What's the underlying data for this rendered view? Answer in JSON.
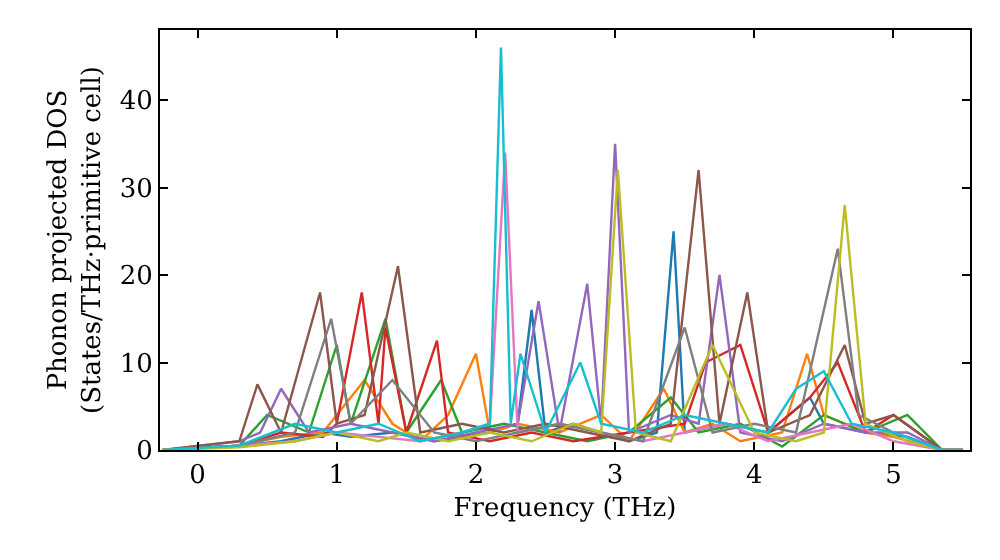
{
  "chart_data": {
    "type": "line",
    "xlabel": "Frequency (THz)",
    "ylabel": "Phonon projected DOS\n(States/THz·primitive cell)",
    "xlim": [
      -0.27,
      5.55
    ],
    "ylim": [
      0,
      48
    ],
    "xticks": [
      0,
      1,
      2,
      3,
      4,
      5
    ],
    "yticks": [
      0,
      10,
      20,
      30,
      40
    ],
    "series": [
      {
        "color": "#1f77b4",
        "x": [
          -0.25,
          0.3,
          0.6,
          0.9,
          1.1,
          1.4,
          1.7,
          1.9,
          2.1,
          2.3,
          2.4,
          2.5,
          2.7,
          2.9,
          3.1,
          3.3,
          3.42,
          3.5,
          3.8,
          4.1,
          4.4,
          4.5,
          4.8,
          5.1,
          5.35,
          5.5
        ],
        "values": [
          0,
          0.5,
          1,
          2,
          1.5,
          2,
          1,
          1.5,
          2,
          3,
          16,
          2,
          3,
          2,
          1,
          2,
          25,
          2,
          3,
          2,
          6,
          3,
          2,
          1.5,
          0,
          0
        ]
      },
      {
        "color": "#ff7f0e",
        "x": [
          -0.25,
          0.3,
          0.6,
          0.9,
          1.2,
          1.4,
          1.6,
          1.8,
          2.0,
          2.1,
          2.3,
          2.6,
          2.9,
          3.1,
          3.35,
          3.5,
          3.7,
          3.9,
          4.2,
          4.38,
          4.5,
          4.8,
          5.0,
          5.35,
          5.5
        ],
        "values": [
          0,
          0.5,
          1.5,
          2,
          8,
          3,
          1,
          4,
          11,
          2,
          3,
          2,
          4,
          1,
          7,
          2,
          3,
          1,
          2,
          11,
          4,
          2,
          1.5,
          0,
          0
        ]
      },
      {
        "color": "#2ca02c",
        "x": [
          -0.25,
          0.3,
          0.5,
          0.8,
          1.0,
          1.1,
          1.35,
          1.5,
          1.75,
          1.9,
          2.2,
          2.5,
          2.8,
          3.1,
          3.4,
          3.6,
          3.9,
          4.2,
          4.5,
          4.8,
          5.1,
          5.35,
          5.5
        ],
        "values": [
          0,
          0.5,
          4,
          2,
          12,
          3,
          15,
          2,
          8,
          2,
          3,
          2,
          1,
          2,
          6,
          2,
          3,
          0.4,
          4,
          2,
          4,
          0,
          0
        ]
      },
      {
        "color": "#d62728",
        "x": [
          -0.25,
          0.3,
          0.6,
          0.9,
          1.0,
          1.18,
          1.3,
          1.35,
          1.5,
          1.72,
          1.8,
          2.1,
          2.4,
          2.7,
          3.1,
          3.5,
          3.65,
          3.9,
          4.1,
          4.4,
          4.6,
          4.8,
          5.0,
          5.35,
          5.5
        ],
        "values": [
          0,
          0.5,
          2,
          1.5,
          3,
          18,
          3,
          14,
          2,
          12.5,
          2,
          1,
          2,
          1,
          2,
          3,
          10,
          12,
          2,
          6,
          10,
          2,
          4,
          0,
          0
        ]
      },
      {
        "color": "#9467bd",
        "x": [
          -0.25,
          0.3,
          0.45,
          0.6,
          0.8,
          1.1,
          1.4,
          1.7,
          2.0,
          2.3,
          2.45,
          2.6,
          2.8,
          2.9,
          3.0,
          3.1,
          3.4,
          3.6,
          3.75,
          3.9,
          4.2,
          4.5,
          4.8,
          5.1,
          5.35,
          5.5
        ],
        "values": [
          0,
          1,
          2,
          7,
          2,
          3,
          2,
          1,
          2,
          3,
          17,
          2,
          19,
          3,
          35,
          2,
          4,
          3,
          20,
          2,
          1,
          3,
          2,
          2,
          0,
          0
        ]
      },
      {
        "color": "#8c564b",
        "x": [
          -0.25,
          0.3,
          0.43,
          0.6,
          0.88,
          1.0,
          1.2,
          1.44,
          1.6,
          1.9,
          2.2,
          2.5,
          2.8,
          3.1,
          3.4,
          3.6,
          3.75,
          3.95,
          4.1,
          4.4,
          4.65,
          4.8,
          5.0,
          5.35,
          5.5
        ],
        "values": [
          0,
          1,
          7.5,
          2,
          18,
          3,
          4,
          21,
          2,
          3,
          2,
          3,
          2,
          1,
          3,
          32,
          3,
          18,
          2,
          4,
          12,
          3,
          4,
          0,
          0
        ]
      },
      {
        "color": "#e377c2",
        "x": [
          -0.25,
          0.3,
          0.7,
          1.0,
          1.3,
          1.6,
          1.9,
          2.1,
          2.21,
          2.3,
          2.6,
          2.9,
          3.2,
          3.5,
          3.8,
          4.1,
          4.4,
          4.7,
          5.0,
          5.35,
          5.5
        ],
        "values": [
          0,
          0.5,
          1,
          2,
          1.5,
          1,
          2,
          3,
          34,
          2,
          3,
          2,
          1,
          2,
          3,
          1,
          2,
          3,
          1,
          0,
          0
        ]
      },
      {
        "color": "#7f7f7f",
        "x": [
          -0.25,
          0.3,
          0.7,
          0.96,
          1.1,
          1.4,
          1.7,
          2.0,
          2.3,
          2.6,
          2.9,
          3.2,
          3.5,
          3.7,
          4.0,
          4.3,
          4.6,
          4.75,
          5.0,
          5.35,
          5.5
        ],
        "values": [
          0,
          0.5,
          2,
          15,
          3,
          8,
          2,
          1,
          2,
          3,
          2,
          1,
          14,
          2,
          3,
          2,
          23,
          4,
          2,
          0,
          0
        ]
      },
      {
        "color": "#bcbd22",
        "x": [
          -0.25,
          0.3,
          0.7,
          1.0,
          1.3,
          1.5,
          1.8,
          2.1,
          2.4,
          2.7,
          2.9,
          3.02,
          3.15,
          3.4,
          3.7,
          4.0,
          4.3,
          4.5,
          4.65,
          4.8,
          5.1,
          5.35,
          5.5
        ],
        "values": [
          0,
          0.3,
          1,
          2,
          1,
          2,
          1,
          2,
          1,
          3,
          2,
          32,
          2,
          1,
          12,
          2,
          1,
          2,
          28,
          3,
          1,
          0,
          0
        ]
      },
      {
        "color": "#17becf",
        "x": [
          -0.25,
          0.3,
          0.7,
          1.0,
          1.3,
          1.6,
          1.9,
          2.1,
          2.18,
          2.25,
          2.32,
          2.5,
          2.75,
          2.9,
          3.2,
          3.5,
          3.8,
          4.1,
          4.3,
          4.5,
          4.7,
          5.0,
          5.35,
          5.5
        ],
        "values": [
          0,
          0.5,
          3,
          2,
          3,
          1,
          2,
          3,
          46,
          3,
          11,
          2,
          10,
          3,
          2,
          4,
          3,
          2,
          7,
          9,
          3,
          2,
          0,
          0
        ]
      }
    ]
  }
}
